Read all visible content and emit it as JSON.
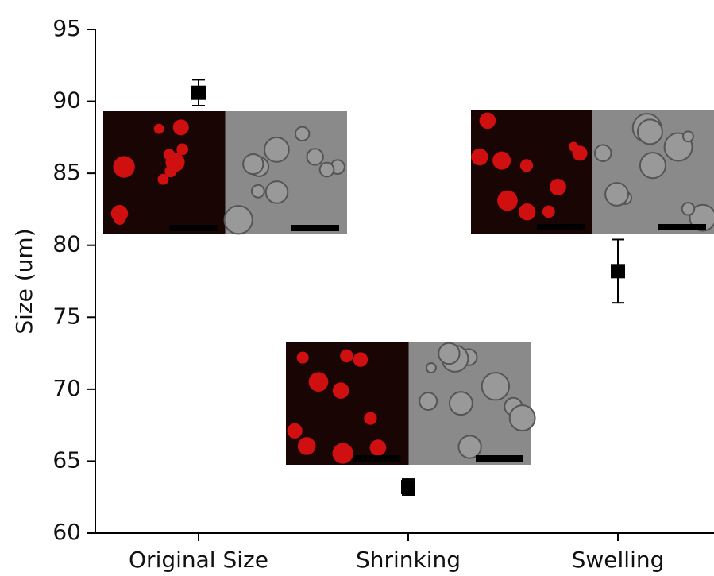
{
  "chart_data": {
    "type": "scatter",
    "y_label": "Size (um)",
    "categories": [
      "Original Size",
      "Shrinking",
      "Swelling"
    ],
    "values": [
      90.6,
      63.2,
      78.2
    ],
    "errors": [
      0.9,
      0.55,
      2.2
    ],
    "color": "#000000",
    "ylim": [
      60,
      95
    ],
    "yticks": [
      60,
      65,
      70,
      75,
      80,
      85,
      90,
      95
    ],
    "grid": false
  }
}
